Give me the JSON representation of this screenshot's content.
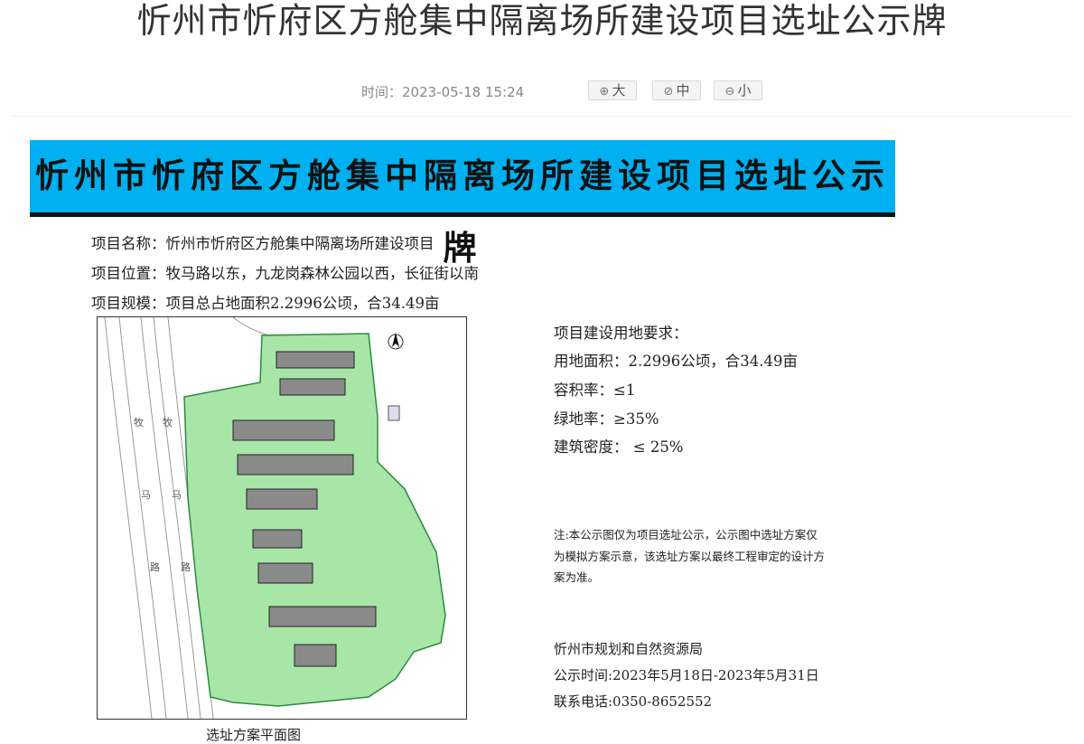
{
  "article": {
    "title": "忻州市忻府区方舱集中隔离场所建设项目选址公示牌",
    "time": "时间：2023-05-18 15:24",
    "font_buttons": [
      {
        "icon": "zoom-in-icon",
        "label": "大"
      },
      {
        "icon": "check-circle-icon",
        "label": "中"
      },
      {
        "icon": "zoom-out-icon",
        "label": "小"
      }
    ]
  },
  "notice": {
    "banner": "忻州市忻府区方舱集中隔离场所建设项目选址公示牌",
    "project_name": "项目名称：忻州市忻府区方舱集中隔离场所建设项目",
    "project_location": "项目位置：牧马路以东，九龙岗森林公园以西，长征街以南",
    "project_scale": "项目规模：项目总占地面积2.2996公顷，合34.49亩",
    "requirements": {
      "heading": "项目建设用地要求：",
      "items": [
        "用地面积：2.2996公顷，合34.49亩",
        "容积率：≤1",
        "绿地率：≥35%",
        "建筑密度： ≤ 25%"
      ]
    },
    "note": "注:本公示图仅为项目选址公示，公示图中选址方案仅为模拟方案示意，该选址方案以最终工程审定的设计方案为准。",
    "plan_caption": "选址方案平面图",
    "plan_labels": [
      "牧",
      "牧",
      "马",
      "马",
      "路",
      "路"
    ],
    "issuer": "忻州市规划和自然资源局",
    "period": "公示时间:2023年5月18日-2023年5月31日",
    "phone": "联系电话:0350-8652552"
  },
  "colors": {
    "banner_bg": "#00b0f0",
    "site_green": "#a8e6a8",
    "building_gray": "#8a8a8a"
  }
}
